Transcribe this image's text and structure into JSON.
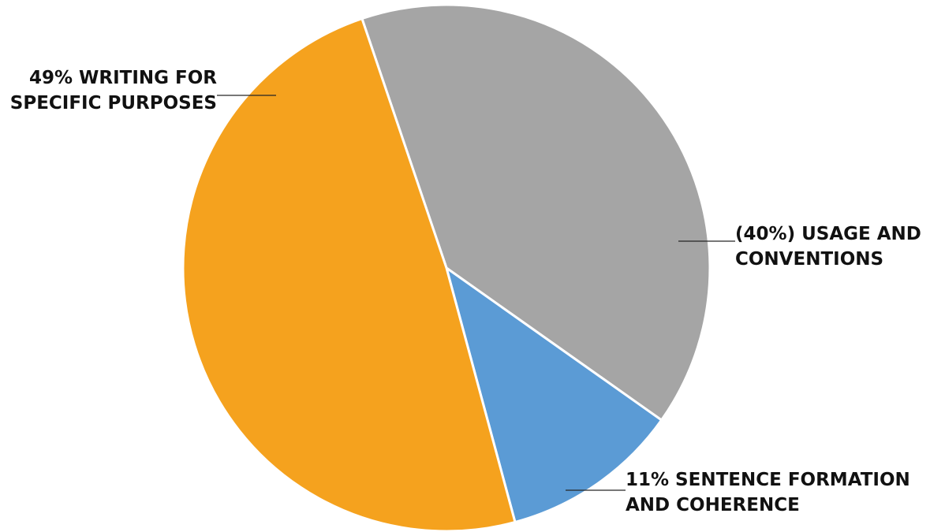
{
  "chart_data": {
    "type": "pie",
    "start_angle_deg": -18.7,
    "direction": "clockwise",
    "slices": [
      {
        "name": "USAGE AND CONVENTIONS",
        "value": 40,
        "color": "#a5a5a5",
        "label_lines": [
          "(40%) USAGE AND",
          "CONVENTIONS"
        ]
      },
      {
        "name": "SENTENCE FORMATION AND COHERENCE",
        "value": 11,
        "color": "#5b9bd5",
        "label_lines": [
          "11% SENTENCE FORMATION",
          "AND COHERENCE"
        ]
      },
      {
        "name": "WRITING FOR SPECIFIC PURPOSES",
        "value": 49,
        "color": "#f5a21e",
        "label_lines": [
          "49% WRITING FOR",
          "SPECIFIC PURPOSES"
        ]
      }
    ],
    "title": "",
    "legend": "none",
    "data_labels": "outside with leader lines"
  }
}
